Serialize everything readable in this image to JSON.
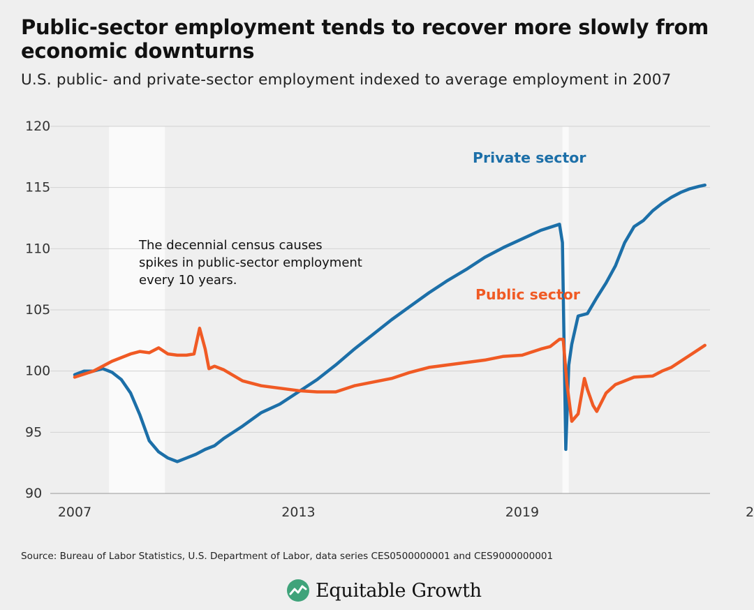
{
  "title": "Public-sector employment tends to recover more slowly from economic downturns",
  "subtitle": "U.S. public- and private-sector employment indexed to average employment in 2007",
  "source": "Source: Bureau of Labor Statistics, U.S. Department of Labor, data series CES0500000001 and CES9000000001",
  "brand": {
    "name": "Equitable Growth",
    "icon": "equitable-growth-logo-icon",
    "icon_color": "#3fa37a"
  },
  "annotation": "The decennial census causes spikes in public-sector employment every 10 years.",
  "colors": {
    "private": "#1c6fa8",
    "public": "#f05a24",
    "recession": "#fafafa",
    "grid": "#d2d2d2",
    "background": "#efefef"
  },
  "chart_data": {
    "type": "line",
    "title": "Public-sector employment tends to recover more slowly from economic downturns",
    "subtitle": "U.S. public- and private-sector employment indexed to average employment in 2007",
    "xlabel": "",
    "ylabel": "",
    "xlim": [
      2007,
      2024
    ],
    "ylim": [
      90,
      120
    ],
    "x_ticks": [
      "2007",
      "2013",
      "2019",
      "2"
    ],
    "y_ticks": [
      90,
      95,
      100,
      105,
      110,
      115,
      120
    ],
    "grid": "horizontal",
    "shaded_periods": [
      [
        2007.92,
        2009.42
      ],
      [
        2020.08,
        2020.25
      ]
    ],
    "series": [
      {
        "name": "Private sector",
        "color": "#1c6fa8",
        "x": [
          2007.0,
          2007.25,
          2007.5,
          2007.75,
          2008.0,
          2008.25,
          2008.5,
          2008.75,
          2009.0,
          2009.25,
          2009.5,
          2009.75,
          2010.0,
          2010.25,
          2010.5,
          2010.75,
          2011.0,
          2011.5,
          2012.0,
          2012.5,
          2013.0,
          2013.5,
          2014.0,
          2014.5,
          2015.0,
          2015.5,
          2016.0,
          2016.5,
          2017.0,
          2017.5,
          2018.0,
          2018.5,
          2019.0,
          2019.5,
          2020.0,
          2020.08,
          2020.17,
          2020.25,
          2020.33,
          2020.5,
          2020.75,
          2021.0,
          2021.25,
          2021.5,
          2021.75,
          2022.0,
          2022.25,
          2022.5,
          2022.75,
          2023.0,
          2023.25,
          2023.5,
          2023.75,
          2023.9
        ],
        "values": [
          99.7,
          100.0,
          100.0,
          100.2,
          99.9,
          99.3,
          98.2,
          96.4,
          94.3,
          93.4,
          92.9,
          92.6,
          92.9,
          93.2,
          93.6,
          93.9,
          94.5,
          95.5,
          96.6,
          97.3,
          98.3,
          99.3,
          100.5,
          101.8,
          103.0,
          104.2,
          105.3,
          106.4,
          107.4,
          108.3,
          109.3,
          110.1,
          110.8,
          111.5,
          112.0,
          110.5,
          93.6,
          100.5,
          102.2,
          104.5,
          104.7,
          106.0,
          107.2,
          108.6,
          110.5,
          111.8,
          112.3,
          113.1,
          113.7,
          114.2,
          114.6,
          114.9,
          115.1,
          115.2
        ]
      },
      {
        "name": "Public sector",
        "color": "#f05a24",
        "x": [
          2007.0,
          2007.5,
          2008.0,
          2008.5,
          2008.75,
          2009.0,
          2009.25,
          2009.5,
          2009.75,
          2010.0,
          2010.2,
          2010.35,
          2010.5,
          2010.6,
          2010.75,
          2011.0,
          2011.5,
          2012.0,
          2012.5,
          2013.0,
          2013.5,
          2014.0,
          2014.5,
          2015.0,
          2015.5,
          2016.0,
          2016.5,
          2017.0,
          2017.5,
          2018.0,
          2018.5,
          2019.0,
          2019.5,
          2019.75,
          2020.0,
          2020.1,
          2020.2,
          2020.33,
          2020.5,
          2020.67,
          2020.75,
          2020.9,
          2021.0,
          2021.25,
          2021.5,
          2022.0,
          2022.5,
          2022.75,
          2023.0,
          2023.25,
          2023.5,
          2023.75,
          2023.9
        ],
        "values": [
          99.5,
          100.0,
          100.8,
          101.4,
          101.6,
          101.5,
          101.9,
          101.4,
          101.3,
          101.3,
          101.4,
          103.5,
          101.8,
          100.2,
          100.4,
          100.1,
          99.2,
          98.8,
          98.6,
          98.4,
          98.3,
          98.3,
          98.8,
          99.1,
          99.4,
          99.9,
          100.3,
          100.5,
          100.7,
          100.9,
          101.2,
          101.3,
          101.8,
          102.0,
          102.6,
          102.6,
          99.0,
          95.9,
          96.5,
          99.4,
          98.5,
          97.2,
          96.7,
          98.2,
          98.9,
          99.5,
          99.6,
          100.0,
          100.3,
          100.8,
          101.3,
          101.8,
          102.1
        ]
      }
    ]
  }
}
